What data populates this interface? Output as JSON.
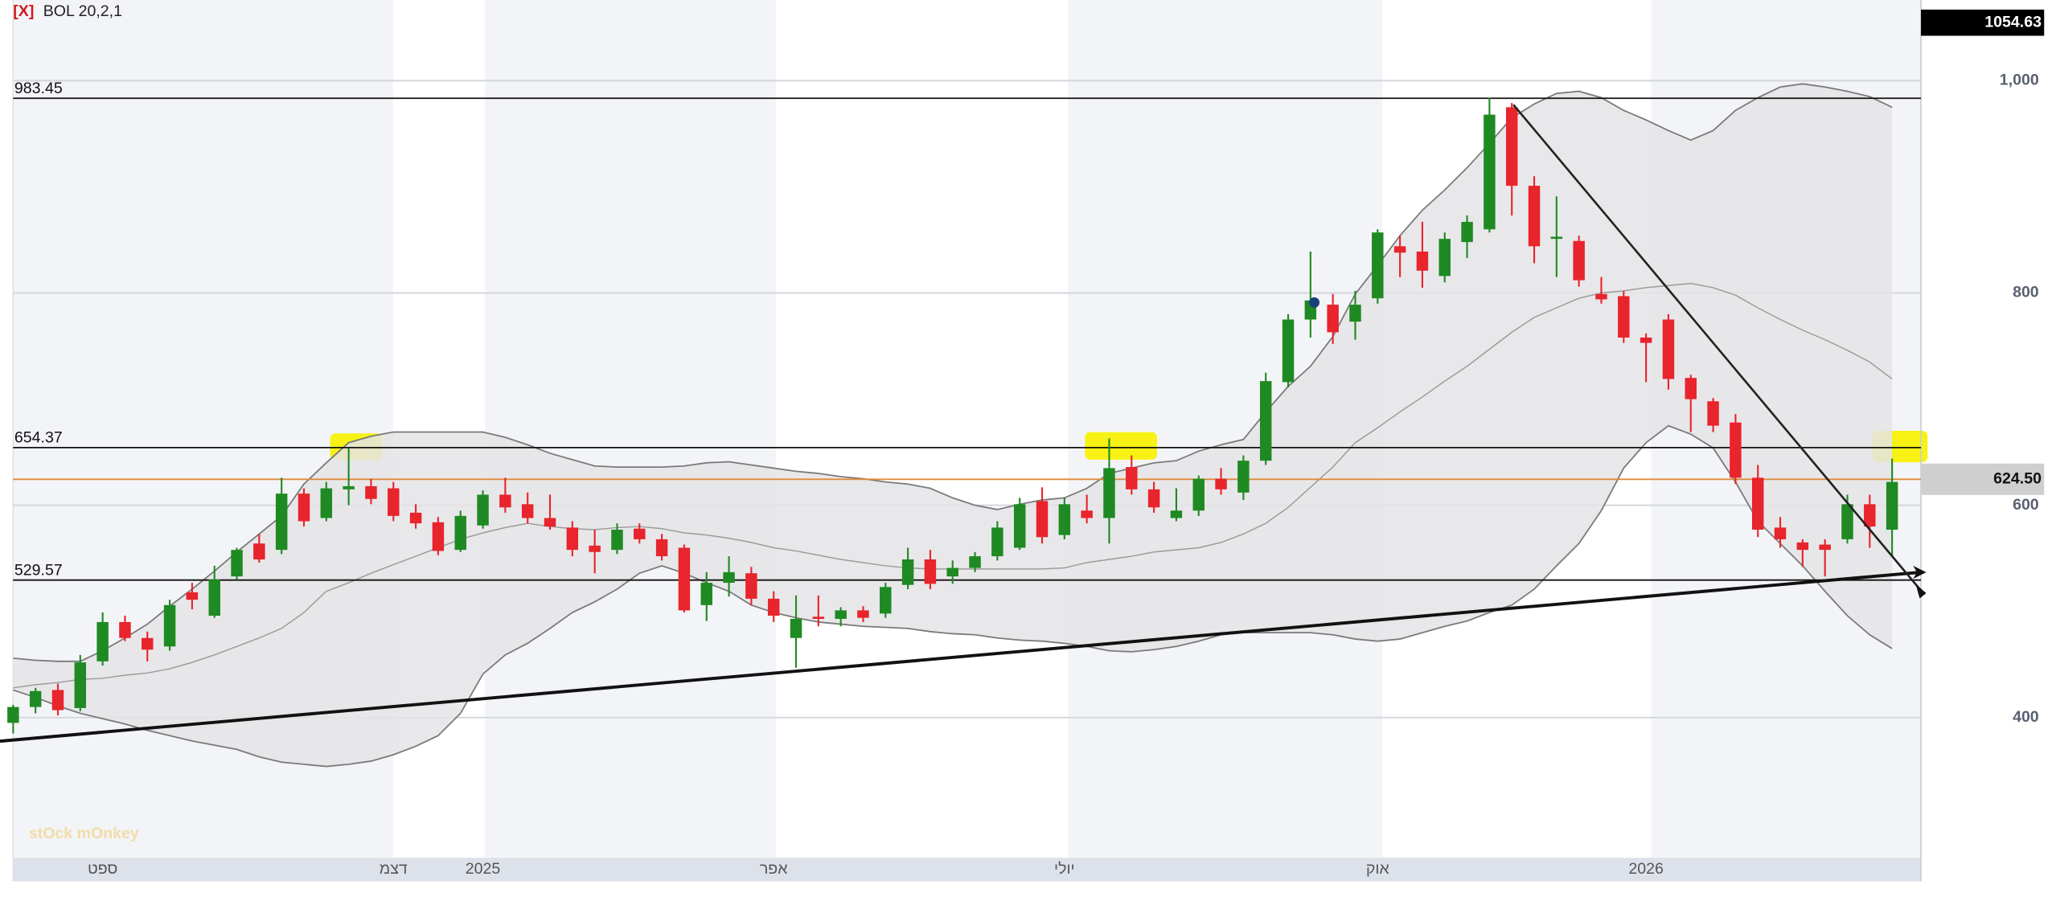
{
  "chart_data": {
    "type": "candlestick",
    "indicator": {
      "close_label": "[X]",
      "label": "BOL 20,2,1"
    },
    "watermark": "stOck mOnkey",
    "categories": [
      null,
      null,
      null,
      null,
      "ספט",
      null,
      null,
      null,
      null,
      null,
      null,
      null,
      null,
      null,
      null,
      null,
      null,
      "דצמ",
      null,
      null,
      null,
      "2025",
      null,
      null,
      null,
      null,
      null,
      null,
      null,
      null,
      null,
      null,
      null,
      null,
      "אפר",
      null,
      null,
      null,
      null,
      null,
      null,
      null,
      null,
      null,
      null,
      null,
      null,
      "יולי",
      null,
      null,
      null,
      null,
      null,
      null,
      null,
      null,
      null,
      null,
      null,
      null,
      null,
      "אוק",
      null,
      null,
      null,
      null,
      null,
      null,
      null,
      null,
      null,
      null,
      null,
      "2026",
      null,
      null,
      null,
      null,
      null,
      null,
      null,
      null,
      null,
      null,
      null
    ],
    "open": [
      395,
      410,
      426,
      409,
      453,
      490,
      475,
      467,
      518,
      496,
      533,
      564,
      558,
      611,
      588,
      615,
      618,
      616,
      593,
      584,
      558,
      581,
      610,
      601,
      588,
      579,
      562,
      558,
      578,
      568,
      560,
      506,
      527,
      536,
      512,
      475,
      495,
      493,
      501,
      498,
      525,
      549,
      533,
      541,
      552,
      560,
      604,
      572,
      595,
      588,
      636,
      615,
      588,
      595,
      625,
      612,
      642,
      716,
      775,
      789,
      773,
      795,
      844,
      839,
      816,
      848,
      860,
      975,
      901,
      851,
      849,
      799,
      797,
      758,
      775,
      720,
      698,
      678,
      626,
      579,
      565,
      563,
      568,
      601,
      577
    ],
    "high": [
      412,
      428,
      432,
      459,
      499,
      496,
      481,
      511,
      527,
      543,
      560,
      573,
      626,
      616,
      622,
      654,
      625,
      622,
      601,
      589,
      595,
      614,
      626,
      612,
      610,
      585,
      577,
      583,
      583,
      573,
      563,
      537,
      552,
      542,
      519,
      515,
      515,
      504,
      505,
      527,
      560,
      558,
      548,
      556,
      585,
      607,
      617,
      607,
      610,
      663,
      647,
      622,
      616,
      628,
      635,
      647,
      725,
      780,
      839,
      799,
      802,
      860,
      854,
      867,
      857,
      873,
      984,
      979,
      910,
      891,
      854,
      815,
      802,
      762,
      780,
      723,
      701,
      686,
      638,
      589,
      568,
      568,
      610,
      610,
      644
    ],
    "low": [
      385,
      404,
      402,
      406,
      449,
      472,
      453,
      463,
      502,
      494,
      530,
      546,
      554,
      580,
      585,
      600,
      601,
      585,
      578,
      553,
      556,
      578,
      593,
      583,
      577,
      552,
      536,
      554,
      564,
      548,
      499,
      491,
      514,
      506,
      490,
      447,
      486,
      486,
      490,
      494,
      521,
      521,
      526,
      537,
      548,
      558,
      564,
      568,
      583,
      564,
      610,
      593,
      585,
      590,
      610,
      605,
      638,
      711,
      758,
      752,
      756,
      790,
      815,
      805,
      810,
      833,
      857,
      873,
      828,
      815,
      806,
      790,
      753,
      716,
      709,
      669,
      669,
      620,
      570,
      560,
      542,
      533,
      564,
      560,
      552
    ],
    "close": [
      410,
      425,
      407,
      452,
      490,
      475,
      464,
      506,
      511,
      530,
      558,
      549,
      611,
      585,
      616,
      618,
      606,
      590,
      583,
      557,
      590,
      610,
      598,
      588,
      580,
      558,
      556,
      577,
      568,
      552,
      501,
      527,
      537,
      512,
      496,
      493,
      493,
      501,
      494,
      523,
      549,
      526,
      541,
      552,
      579,
      601,
      570,
      601,
      588,
      635,
      615,
      598,
      595,
      625,
      615,
      642,
      717,
      775,
      793,
      763,
      789,
      857,
      838,
      821,
      851,
      867,
      968,
      901,
      844,
      853,
      812,
      794,
      758,
      753,
      719,
      700,
      675,
      626,
      577,
      568,
      558,
      558,
      601,
      580,
      622
    ],
    "up_color": "#1f8a23",
    "down_color": "#e8242c",
    "bands": {
      "color": "#7a7a7a",
      "fill": "#e4e4e6",
      "upper": [
        456,
        454,
        453,
        453,
        463,
        475,
        488,
        505,
        521,
        538,
        556,
        573,
        590,
        620,
        640,
        659,
        665,
        669,
        669,
        669,
        669,
        669,
        664,
        657,
        649,
        643,
        637,
        636,
        636,
        636,
        637,
        640,
        641,
        638,
        635,
        632,
        630,
        627,
        625,
        622,
        620,
        616,
        607,
        600,
        596,
        601,
        605,
        607,
        616,
        630,
        635,
        640,
        642,
        651,
        657,
        662,
        688,
        712,
        731,
        759,
        799,
        826,
        854,
        878,
        897,
        918,
        941,
        965,
        978,
        988,
        990,
        984,
        972,
        963,
        953,
        944,
        953,
        972,
        984,
        994,
        997,
        994,
        990,
        985,
        975
      ],
      "middle": [
        428,
        431,
        433,
        436,
        437,
        440,
        442,
        446,
        452,
        459,
        467,
        475,
        484,
        499,
        519,
        527,
        536,
        544,
        552,
        560,
        568,
        574,
        579,
        583,
        580,
        578,
        577,
        579,
        580,
        578,
        574,
        572,
        569,
        565,
        560,
        557,
        553,
        549,
        546,
        543,
        541,
        540,
        540,
        540,
        540,
        540,
        540,
        541,
        546,
        549,
        552,
        556,
        558,
        560,
        565,
        573,
        583,
        598,
        617,
        636,
        659,
        673,
        688,
        702,
        717,
        731,
        747,
        763,
        777,
        786,
        795,
        800,
        802,
        805,
        807,
        809,
        805,
        798,
        786,
        775,
        765,
        756,
        746,
        735,
        719
      ],
      "lower": [
        426,
        419,
        411,
        404,
        399,
        394,
        388,
        383,
        378,
        374,
        370,
        363,
        358,
        356,
        354,
        356,
        359,
        365,
        373,
        383,
        404,
        441,
        459,
        470,
        484,
        499,
        509,
        521,
        536,
        543,
        536,
        527,
        519,
        506,
        499,
        494,
        490,
        488,
        486,
        485,
        484,
        481,
        479,
        478,
        475,
        473,
        472,
        470,
        467,
        463,
        462,
        464,
        467,
        472,
        478,
        480,
        480,
        480,
        480,
        478,
        474,
        472,
        474,
        480,
        486,
        491,
        499,
        506,
        521,
        543,
        564,
        595,
        635,
        659,
        675,
        667,
        654,
        622,
        585,
        564,
        543,
        519,
        496,
        478,
        465
      ]
    },
    "levels": [
      983.45,
      654.37,
      529.57
    ],
    "level_color": "#111111",
    "last_price": {
      "value": 624.5,
      "label": "624.50"
    },
    "last_price_color": "#e08a3a",
    "cursor_value": {
      "value": 1054.63,
      "label": "1054.63"
    },
    "ylim": [
      268,
      1076
    ],
    "yticks": [
      {
        "value": 1000,
        "label": "1,000"
      },
      800,
      600,
      400
    ],
    "grid": true
  }
}
